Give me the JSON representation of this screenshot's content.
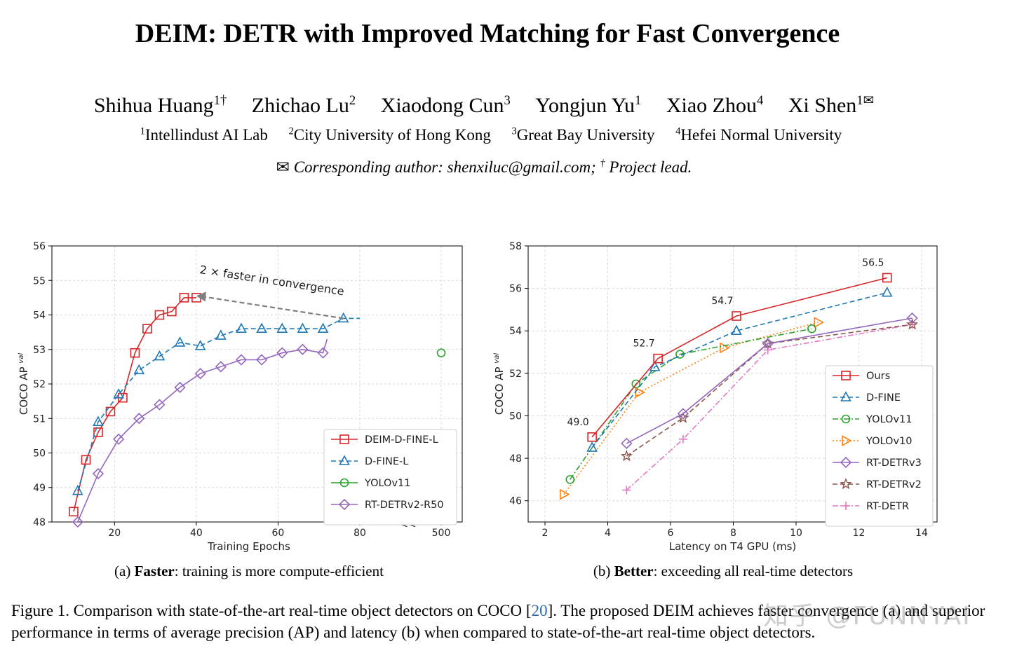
{
  "paper": {
    "title": "DEIM: DETR with Improved Matching for Fast Convergence",
    "authors": [
      {
        "name": "Shihua Huang",
        "sup": "1†"
      },
      {
        "name": "Zhichao Lu",
        "sup": "2"
      },
      {
        "name": "Xiaodong Cun",
        "sup": "3"
      },
      {
        "name": "Yongjun Yu",
        "sup": "1"
      },
      {
        "name": "Xiao Zhou",
        "sup": "4"
      },
      {
        "name": "Xi Shen",
        "sup": "1✉"
      }
    ],
    "affiliations": [
      {
        "sup": "1",
        "name": "Intellindust AI Lab"
      },
      {
        "sup": "2",
        "name": "City University of Hong Kong"
      },
      {
        "sup": "3",
        "name": "Great Bay University"
      },
      {
        "sup": "4",
        "name": "Hefei Normal University"
      }
    ],
    "corresponding": {
      "envelope": "✉",
      "text": "Corresponding author: shenxiluc@gmail.com;",
      "dagger": "†",
      "lead": "Project lead."
    },
    "caption_a": {
      "prefix": "(a) ",
      "bold": "Faster",
      "rest": ": training is more compute-efficient"
    },
    "caption_b": {
      "prefix": "(b) ",
      "bold": "Better",
      "rest": ": exceeding all real-time detectors"
    },
    "figure_caption": {
      "part1": "Figure 1. Comparison with state-of-the-art real-time object detectors on COCO [",
      "ref": "20",
      "part2": "]. The proposed DEIM achieves faster convergence (a) and superior performance in terms of average precision (AP) and latency (b) when compared to state-of-the-art real-time object detectors."
    },
    "watermark": "知乎 @FUNNYAI"
  },
  "colors": {
    "red": "#d62728",
    "blue": "#1f77b4",
    "green": "#2ca02c",
    "orange": "#ff7f0e",
    "purple": "#9467bd",
    "brown": "#8c564b",
    "pink": "#e377c2",
    "gray": "#7f7f7f"
  },
  "chart_data": [
    {
      "type": "line",
      "ylabel": "COCO AP",
      "ylabel_sup": "val",
      "xlabel": "Training Epochs",
      "ylim": [
        48,
        56
      ],
      "xlim": [
        5,
        84
      ],
      "xticks": [
        20,
        40,
        60,
        80
      ],
      "yticks": [
        48,
        49,
        50,
        51,
        52,
        53,
        54,
        55,
        56
      ],
      "axis_break_label": "<<",
      "extra_tick": {
        "label": "500"
      },
      "annotation": {
        "text": "2 × faster in convergence",
        "from": [
          76,
          53.9
        ],
        "to": [
          40,
          54.55
        ]
      },
      "grid": true,
      "legend_position": "bottom-right",
      "series": [
        {
          "name": "DEIM-D-FINE-L",
          "color": "red",
          "marker": "square",
          "dash": "solid",
          "x": [
            10,
            13,
            16,
            19,
            22,
            25,
            28,
            31,
            34,
            37,
            40
          ],
          "y": [
            48.3,
            49.8,
            50.6,
            51.2,
            51.6,
            52.9,
            53.6,
            54.0,
            54.1,
            54.5,
            54.5
          ]
        },
        {
          "name": "D-FINE-L",
          "color": "blue",
          "marker": "triangle",
          "dash": "dashed",
          "x": [
            11,
            16,
            21,
            26,
            31,
            36,
            41,
            46,
            51,
            56,
            61,
            66,
            71,
            76,
            80
          ],
          "y": [
            48.9,
            50.9,
            51.7,
            52.4,
            52.8,
            53.2,
            53.1,
            53.4,
            53.6,
            53.6,
            53.6,
            53.6,
            53.6,
            53.9,
            53.9
          ],
          "marker_x": [
            11,
            16,
            21,
            26,
            31,
            36,
            41,
            46,
            51,
            56,
            61,
            66,
            71,
            76
          ]
        },
        {
          "name": "YOLOv11",
          "color": "green",
          "marker": "circle",
          "dash": "none",
          "points": [
            {
              "x_label": "500",
              "y": 52.9
            }
          ]
        },
        {
          "name": "RT-DETRv2-R50",
          "color": "purple",
          "marker": "diamond",
          "dash": "solid",
          "x": [
            10,
            11,
            16,
            21,
            26,
            31,
            36,
            41,
            46,
            51,
            56,
            61,
            66,
            71,
            72
          ],
          "y": [
            48.0,
            48.0,
            49.4,
            50.4,
            51.0,
            51.4,
            51.9,
            52.3,
            52.5,
            52.7,
            52.7,
            52.9,
            53.0,
            52.9,
            53.3
          ],
          "marker_x": [
            11,
            16,
            21,
            26,
            31,
            36,
            41,
            46,
            51,
            56,
            61,
            66,
            71
          ]
        }
      ]
    },
    {
      "type": "line",
      "ylabel": "COCO AP",
      "ylabel_sup": "val",
      "xlabel": "Latency on T4 GPU (ms)",
      "xlim": [
        1.5,
        14.5
      ],
      "ylim": [
        45,
        58
      ],
      "xticks": [
        2,
        4,
        6,
        8,
        10,
        12,
        14
      ],
      "yticks": [
        46,
        48,
        50,
        52,
        54,
        56,
        58
      ],
      "grid": true,
      "legend_position": "center-right",
      "data_labels": [
        {
          "x": 3.5,
          "y": 49.0,
          "text": "49.0"
        },
        {
          "x": 5.6,
          "y": 52.7,
          "text": "52.7"
        },
        {
          "x": 8.1,
          "y": 54.7,
          "text": "54.7"
        },
        {
          "x": 12.9,
          "y": 56.5,
          "text": "56.5"
        }
      ],
      "series": [
        {
          "name": "Ours",
          "color": "red",
          "marker": "square",
          "dash": "solid",
          "x": [
            3.5,
            5.6,
            8.1,
            12.9
          ],
          "y": [
            49.0,
            52.7,
            54.7,
            56.5
          ]
        },
        {
          "name": "D-FINE",
          "color": "blue",
          "marker": "triangle",
          "dash": "dashed",
          "x": [
            3.5,
            5.5,
            8.1,
            12.9
          ],
          "y": [
            48.5,
            52.3,
            54.0,
            55.8
          ]
        },
        {
          "name": "YOLOv11",
          "color": "green",
          "marker": "circle",
          "dash": "dashdot",
          "x": [
            2.8,
            4.9,
            6.3,
            10.5
          ],
          "y": [
            47.0,
            51.5,
            52.9,
            54.1
          ]
        },
        {
          "name": "YOLOv10",
          "color": "orange",
          "marker": "triangle-right",
          "dash": "dotted",
          "x": [
            2.6,
            5.0,
            7.7,
            10.7
          ],
          "y": [
            46.3,
            51.1,
            53.2,
            54.4
          ]
        },
        {
          "name": "RT-DETRv3",
          "color": "purple",
          "marker": "diamond",
          "dash": "solid",
          "x": [
            4.6,
            6.4,
            9.1,
            13.7
          ],
          "y": [
            48.7,
            50.1,
            53.4,
            54.6
          ]
        },
        {
          "name": "RT-DETRv2",
          "color": "brown",
          "marker": "star",
          "dash": "dashed",
          "x": [
            4.6,
            6.4,
            9.1,
            13.7
          ],
          "y": [
            48.1,
            49.9,
            53.4,
            54.3
          ]
        },
        {
          "name": "RT-DETR",
          "color": "pink",
          "marker": "plus",
          "dash": "dashdot",
          "x": [
            4.6,
            6.4,
            9.1,
            13.7
          ],
          "y": [
            46.5,
            48.9,
            53.1,
            54.3
          ]
        }
      ]
    }
  ]
}
